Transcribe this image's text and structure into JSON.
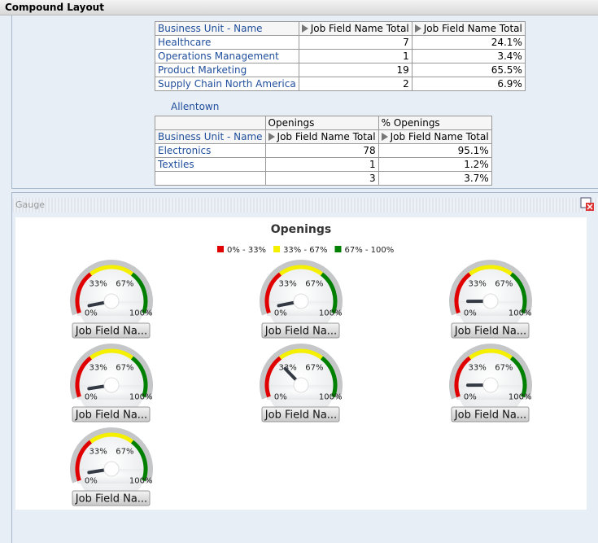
{
  "header": {
    "title": "Compound Layout"
  },
  "table1": {
    "columns": [
      "Business Unit - Name",
      "Job Field Name Total",
      "Job Field Name Total"
    ],
    "rows": [
      [
        "Healthcare",
        "7",
        "24.1%"
      ],
      [
        "Operations Management",
        "1",
        "3.4%"
      ],
      [
        "Product Marketing",
        "19",
        "65.5%"
      ],
      [
        "Supply Chain North America",
        "2",
        "6.9%"
      ]
    ]
  },
  "group2": {
    "label": "Allentown",
    "table": {
      "column_groups": [
        "Openings",
        "% Openings"
      ],
      "columns": [
        "Business Unit - Name",
        "Job Field Name Total",
        "Job Field Name Total"
      ],
      "rows": [
        [
          "Electronics",
          "78",
          "95.1%"
        ],
        [
          "Textiles",
          "1",
          "1.2%"
        ],
        [
          null,
          "3",
          "3.7%"
        ]
      ]
    }
  },
  "gauge_view": {
    "title": "Gauge",
    "chart_data": {
      "type": "gauge",
      "title": "Openings",
      "range": [
        0,
        100
      ],
      "ticks": [
        {
          "value": 0,
          "label": "0%"
        },
        {
          "value": 33,
          "label": "33%"
        },
        {
          "value": 67,
          "label": "67%"
        },
        {
          "value": 100,
          "label": "100%"
        }
      ],
      "bands": [
        {
          "label": "0% - 33%",
          "color": "#e00000"
        },
        {
          "label": "33% - 67%",
          "color": "#f5f000"
        },
        {
          "label": "67% - 100%",
          "color": "#008000"
        }
      ],
      "gauges": [
        {
          "label": "Job Field Na...",
          "value": 4
        },
        {
          "label": "Job Field Na...",
          "value": 4
        },
        {
          "label": "Job Field Na...",
          "value": 9
        },
        {
          "label": "Job Field Na...",
          "value": 5
        },
        {
          "label": "Job Field Na...",
          "value": 30
        },
        {
          "label": "Job Field Na...",
          "value": 9
        },
        {
          "label": "Job Field Na...",
          "value": 5
        }
      ]
    }
  }
}
